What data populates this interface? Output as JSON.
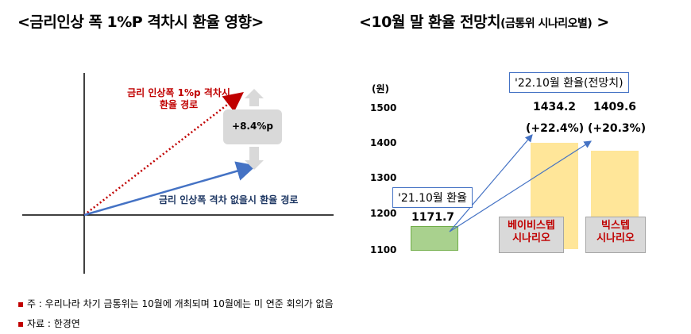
{
  "left_panel": {
    "title": "<금리인상 폭 1%P 격차시 환율 영향>",
    "red_path_label_line1": "금리 인상폭 1%p 격차시",
    "red_path_label_line2": "환율 경로",
    "gap_label": "+8.4%p",
    "blue_path_label": "금리 인상폭 격차 없을시 환율 경로",
    "colors": {
      "red_path": "#c00000",
      "blue_path": "#4472c4",
      "gap_arrow": "#d9d9d9"
    }
  },
  "right_panel": {
    "title_main": "<10월 말 환율 전망치",
    "title_sub": "(금통위 시나리오별)",
    "title_end": " >",
    "forecast_box_label": "'22.10월 환율(전망치)",
    "current_box_label": "'21.10월 환율"
  },
  "chart_data": {
    "type": "bar",
    "y_unit": "(원)",
    "ylim": [
      1100,
      1500
    ],
    "y_ticks": [
      "1500",
      "1400",
      "1300",
      "1200",
      "1100"
    ],
    "categories": [
      "'21.10월 환율",
      "베이비스텝 시나리오",
      "빅스텝 시나리오"
    ],
    "category_labels": [
      {
        "line1": "",
        "line2": ""
      },
      {
        "line1": "베이비스텝",
        "line2": "시나리오"
      },
      {
        "line1": "빅스텝",
        "line2": "시나리오"
      }
    ],
    "values": [
      1171.7,
      1434.2,
      1409.6
    ],
    "value_labels": [
      "1171.7",
      "1434.2",
      "1409.6"
    ],
    "change_labels": [
      "",
      "(+22.4%)",
      "(+20.3%)"
    ],
    "colors": [
      "#a9d18e",
      "#ffe699",
      "#ffe699"
    ],
    "bar_outline": "#70ad47"
  },
  "notes": {
    "note1": "주 : 우리나라 차기 금통위는 10월에 개최되며 10월에는 미 연준 회의가 없음",
    "note2": "자료 : 한경연"
  }
}
